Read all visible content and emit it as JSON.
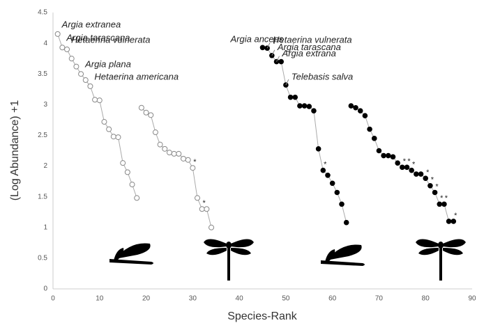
{
  "chart_data": {
    "type": "scatter",
    "x_label": "Species-Rank",
    "y_label": "(Log Abundance) +1",
    "xlim": [
      0,
      90
    ],
    "xticks": [
      0,
      10,
      20,
      30,
      40,
      50,
      60,
      70,
      80,
      90
    ],
    "ylim": [
      0,
      4.5
    ],
    "yticks": [
      0,
      0.5,
      1,
      1.5,
      2,
      2.5,
      3,
      3.5,
      4,
      4.5
    ],
    "grid": false,
    "series": [
      {
        "marker": "open",
        "color": "#888888",
        "x": [
          1,
          2,
          3,
          4,
          5,
          6,
          7,
          8,
          9,
          10,
          11,
          12,
          13,
          14,
          15,
          16,
          17,
          18
        ],
        "values": [
          4.15,
          3.93,
          3.9,
          3.75,
          3.62,
          3.5,
          3.4,
          3.3,
          3.08,
          3.07,
          2.72,
          2.6,
          2.48,
          2.47,
          2.05,
          1.9,
          1.7,
          1.48
        ]
      },
      {
        "marker": "open",
        "color": "#888888",
        "x": [
          19,
          20,
          21,
          22,
          23,
          24,
          25,
          26,
          27,
          28,
          29,
          30,
          31,
          32,
          33,
          34
        ],
        "values": [
          2.95,
          2.87,
          2.83,
          2.55,
          2.35,
          2.28,
          2.22,
          2.2,
          2.2,
          2.12,
          2.1,
          1.97,
          1.48,
          1.3,
          1.3,
          1.0
        ]
      },
      {
        "marker": "filled",
        "color": "#000000",
        "x": [
          45,
          46,
          47,
          48,
          49,
          50,
          51,
          52,
          53,
          54,
          55,
          56,
          57,
          58,
          59,
          60,
          61,
          62,
          63
        ],
        "values": [
          3.93,
          3.92,
          3.8,
          3.7,
          3.7,
          3.32,
          3.12,
          3.12,
          2.98,
          2.98,
          2.97,
          2.9,
          2.28,
          1.93,
          1.85,
          1.72,
          1.57,
          1.38,
          1.08
        ]
      },
      {
        "marker": "filled",
        "color": "#000000",
        "x": [
          64,
          65,
          66,
          67,
          68,
          69,
          70,
          71,
          72,
          73,
          74,
          75,
          76,
          77,
          78,
          79,
          80,
          81,
          82,
          83,
          84,
          85,
          86
        ],
        "values": [
          2.98,
          2.95,
          2.9,
          2.82,
          2.6,
          2.45,
          2.25,
          2.17,
          2.17,
          2.15,
          2.05,
          1.98,
          1.98,
          1.93,
          1.87,
          1.87,
          1.8,
          1.68,
          1.57,
          1.38,
          1.38,
          1.1,
          1.1
        ]
      }
    ],
    "annotations": [
      {
        "text": "Argia extranea",
        "series": 0,
        "index": 0
      },
      {
        "text": "Argia tarascana",
        "series": 0,
        "index": 1
      },
      {
        "text": "Hetaerina vulnerata",
        "series": 0,
        "index": 2
      },
      {
        "text": "Argia plana",
        "series": 0,
        "index": 5
      },
      {
        "text": "Hetaerina americana",
        "series": 0,
        "index": 7
      },
      {
        "text": "Argia anceps",
        "series": 2,
        "index": 0
      },
      {
        "text": "Hetaerina vulnerata",
        "series": 2,
        "index": 1
      },
      {
        "text": "Argia tarascana",
        "series": 2,
        "index": 2
      },
      {
        "text": "Argia extrana",
        "series": 2,
        "index": 3
      },
      {
        "text": "Telebasis salva",
        "series": 2,
        "index": 5
      }
    ],
    "markers": [
      {
        "text": "*",
        "series": 1,
        "index": 11
      },
      {
        "text": "*",
        "series": 1,
        "index": 13
      },
      {
        "text": "*",
        "series": 2,
        "index": 13
      },
      {
        "text": "*",
        "series": 3,
        "index": 11
      },
      {
        "text": "*",
        "series": 3,
        "index": 12
      },
      {
        "text": "*",
        "series": 3,
        "index": 13
      },
      {
        "text": "*",
        "series": 3,
        "index": 16
      },
      {
        "text": "*",
        "series": 3,
        "index": 17
      },
      {
        "text": "*",
        "series": 3,
        "index": 18
      },
      {
        "text": "*",
        "series": 3,
        "index": 19
      },
      {
        "text": "*",
        "series": 3,
        "index": 20
      },
      {
        "text": "*",
        "series": 3,
        "index": 22
      }
    ]
  }
}
